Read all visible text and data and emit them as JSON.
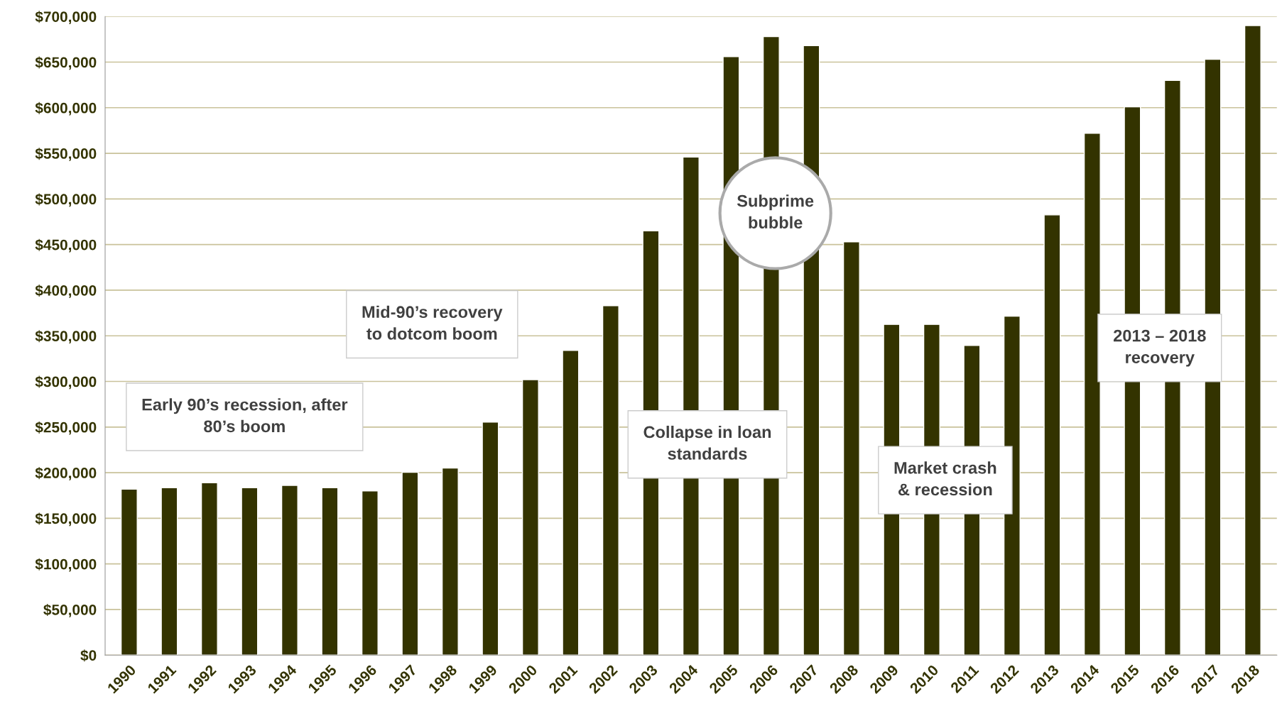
{
  "chart_data": {
    "type": "bar",
    "categories": [
      "1990",
      "1991",
      "1992",
      "1993",
      "1994",
      "1995",
      "1996",
      "1997",
      "1998",
      "1999",
      "2000",
      "2001",
      "2002",
      "2003",
      "2004",
      "2005",
      "2006",
      "2007",
      "2008",
      "2009",
      "2010",
      "2011",
      "2012",
      "2013",
      "2014",
      "2015",
      "2016",
      "2017",
      "2018"
    ],
    "values": [
      182000,
      183500,
      189000,
      183500,
      186000,
      183500,
      180000,
      200500,
      205000,
      255500,
      302000,
      334000,
      383000,
      465000,
      546000,
      656000,
      678000,
      668000,
      453000,
      362500,
      362500,
      339500,
      371500,
      482500,
      572000,
      601000,
      630000,
      653000,
      690000
    ],
    "color": "#333300",
    "ylim": [
      0,
      700000
    ],
    "yticks": [
      {
        "value": 0,
        "label": "$0"
      },
      {
        "value": 50000,
        "label": "$50,000"
      },
      {
        "value": 100000,
        "label": "$100,000"
      },
      {
        "value": 150000,
        "label": "$150,000"
      },
      {
        "value": 200000,
        "label": "$200,000"
      },
      {
        "value": 250000,
        "label": "$250,000"
      },
      {
        "value": 300000,
        "label": "$300,000"
      },
      {
        "value": 350000,
        "label": "$350,000"
      },
      {
        "value": 400000,
        "label": "$400,000"
      },
      {
        "value": 450000,
        "label": "$450,000"
      },
      {
        "value": 500000,
        "label": "$500,000"
      },
      {
        "value": 550000,
        "label": "$550,000"
      },
      {
        "value": 600000,
        "label": "$600,000"
      },
      {
        "value": 650000,
        "label": "$650,000"
      },
      {
        "value": 700000,
        "label": "$700,000"
      }
    ],
    "grid": "y",
    "annotations": [
      "Early 90’s recession, after\n80’s boom",
      "Mid-90’s recovery\nto dotcom boom",
      "Collapse in loan\nstandards",
      "Subprime\nbubble",
      "Market crash\n& recession",
      "2013 – 2018\nrecovery"
    ]
  }
}
